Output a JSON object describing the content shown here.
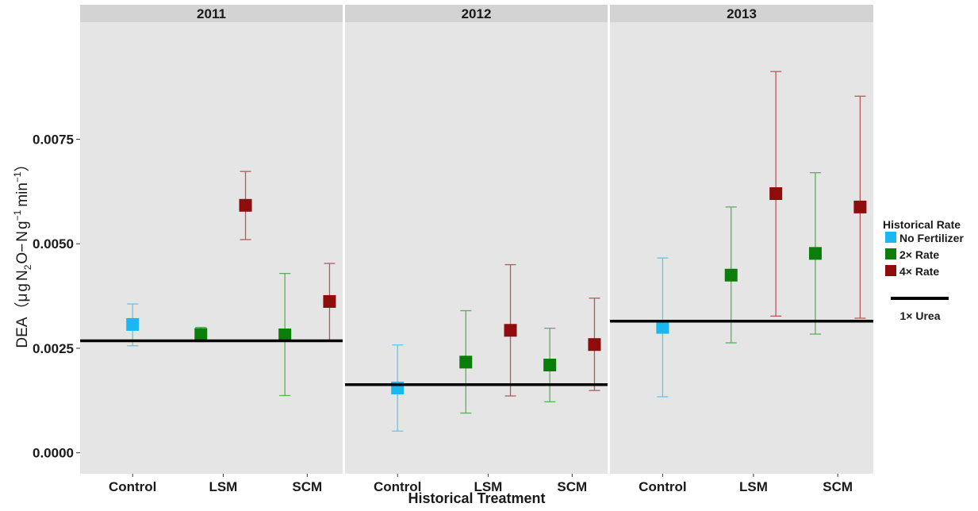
{
  "chart_data": {
    "type": "scatter",
    "title": "",
    "xlabel": "Historical Treatment",
    "ylabel": "DEA（μgN₂O−Ng⁻¹ min⁻¹）",
    "ylabel_parts": {
      "prefix": "DEA（",
      "mu": "μ",
      "g1": "g",
      "N1": "N",
      "sub2": "2",
      "O": "O−",
      "N2": "N",
      "g2": "g",
      "sup1": "−1",
      "min": "min",
      "sup2": "−1",
      "suffix": "）"
    },
    "ylim": [
      -0.0005,
      0.0103
    ],
    "yticks": [
      0.0,
      0.0025,
      0.005,
      0.0075
    ],
    "ytick_labels": [
      "0.0000",
      "0.0025",
      "0.0050",
      "0.0075"
    ],
    "categories": [
      "Control",
      "LSM",
      "SCM"
    ],
    "facets": [
      {
        "label": "2011",
        "reference": 0.00268,
        "points": [
          {
            "category": "Control",
            "series": "No Fertilizer",
            "y": 0.00307,
            "ymin": 0.00256,
            "ymax": 0.00356
          },
          {
            "category": "LSM",
            "series": "2× Rate",
            "y": 0.00283,
            "ymin": 0.00266,
            "ymax": 0.003
          },
          {
            "category": "LSM",
            "series": "4× Rate",
            "y": 0.00592,
            "ymin": 0.0051,
            "ymax": 0.00673
          },
          {
            "category": "SCM",
            "series": "2× Rate",
            "y": 0.00282,
            "ymin": 0.00137,
            "ymax": 0.00429
          },
          {
            "category": "SCM",
            "series": "4× Rate",
            "y": 0.00362,
            "ymin": 0.00268,
            "ymax": 0.00453
          }
        ]
      },
      {
        "label": "2012",
        "reference": 0.00163,
        "points": [
          {
            "category": "Control",
            "series": "No Fertilizer",
            "y": 0.00155,
            "ymin": 0.00052,
            "ymax": 0.00258
          },
          {
            "category": "LSM",
            "series": "2× Rate",
            "y": 0.00217,
            "ymin": 0.00095,
            "ymax": 0.0034
          },
          {
            "category": "LSM",
            "series": "4× Rate",
            "y": 0.00293,
            "ymin": 0.00136,
            "ymax": 0.0045
          },
          {
            "category": "SCM",
            "series": "2× Rate",
            "y": 0.0021,
            "ymin": 0.00122,
            "ymax": 0.00298
          },
          {
            "category": "SCM",
            "series": "4× Rate",
            "y": 0.00259,
            "ymin": 0.00149,
            "ymax": 0.0037
          }
        ]
      },
      {
        "label": "2013",
        "reference": 0.00315,
        "points": [
          {
            "category": "Control",
            "series": "No Fertilizer",
            "y": 0.003,
            "ymin": 0.00134,
            "ymax": 0.00466
          },
          {
            "category": "LSM",
            "series": "2× Rate",
            "y": 0.00425,
            "ymin": 0.00263,
            "ymax": 0.00588
          },
          {
            "category": "LSM",
            "series": "4× Rate",
            "y": 0.0062,
            "ymin": 0.00327,
            "ymax": 0.00912
          },
          {
            "category": "SCM",
            "series": "2× Rate",
            "y": 0.00477,
            "ymin": 0.00284,
            "ymax": 0.0067
          },
          {
            "category": "SCM",
            "series": "4× Rate",
            "y": 0.00588,
            "ymin": 0.00322,
            "ymax": 0.00853
          }
        ]
      }
    ],
    "series": [
      {
        "name": "No Fertilizer",
        "color": "#19b8f0"
      },
      {
        "name": "2× Rate",
        "color": "#0a7d0a"
      },
      {
        "name": "4× Rate",
        "color": "#8e0c0c"
      }
    ],
    "errorbar_colors": {
      "No Fertilizer": "#5cc8ee",
      "2× Rate": "#5cae5c",
      "4× Rate": "#b55a5a"
    },
    "legend": {
      "title": "Historical Rate",
      "placement": "right",
      "line_label": "1× Urea"
    },
    "panel_background": "#e5e5e5",
    "strip_background": "#d3d3d3",
    "grid": false
  }
}
